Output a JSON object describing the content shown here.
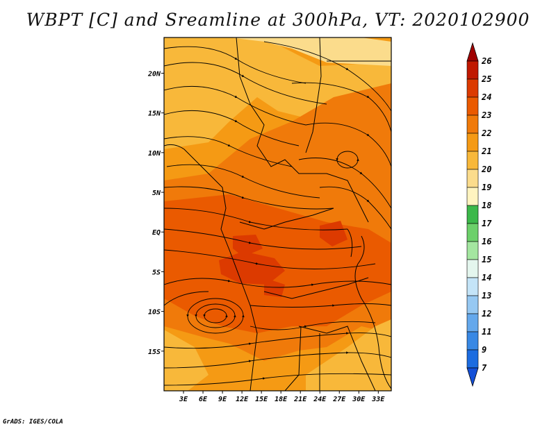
{
  "title": "WBPT [C] and Sreamline at 300hPa, VT: 2020102900",
  "credit": "GrADS: IGES/COLA",
  "chart_data": {
    "type": "heatmap",
    "variable": "WBPT",
    "units": "C",
    "overlay": "streamlines",
    "level": "300hPa",
    "valid_time": "2020102900",
    "x_axis": {
      "range": [
        0,
        35
      ],
      "ticks": [
        3,
        6,
        9,
        12,
        15,
        18,
        21,
        24,
        27,
        30,
        33
      ],
      "tick_labels": [
        "3E",
        "6E",
        "9E",
        "12E",
        "15E",
        "18E",
        "21E",
        "24E",
        "27E",
        "30E",
        "33E"
      ]
    },
    "y_axis": {
      "range": [
        -20,
        24.5
      ],
      "ticks": [
        20,
        15,
        10,
        5,
        0,
        -5,
        -10,
        -15
      ],
      "tick_labels": [
        "20N",
        "15N",
        "10N",
        "5N",
        "EQ",
        "5S",
        "10S",
        "15S"
      ]
    },
    "colorbar": {
      "labels": [
        "26",
        "25",
        "24",
        "23",
        "22",
        "21",
        "20",
        "19",
        "18",
        "17",
        "16",
        "15",
        "14",
        "13",
        "12",
        "11",
        "9",
        "7"
      ],
      "colors": [
        "#a00000",
        "#c01800",
        "#dc3a00",
        "#ea5a00",
        "#f07a0a",
        "#f59a14",
        "#f8b83a",
        "#fbdc8c",
        "#fff4c0",
        "#3cb84a",
        "#6cd06a",
        "#a4e6a0",
        "#e4f6ee",
        "#c4e4f8",
        "#96c8f2",
        "#64a8ec",
        "#3888e4",
        "#1c6ce0",
        "#1450d8"
      ]
    },
    "field_regions": [
      {
        "level": 21,
        "note": "north-west and northern band"
      },
      {
        "level": 20,
        "note": "far north and north-west"
      },
      {
        "level": 22,
        "note": "central and eastern belt"
      },
      {
        "level": 23,
        "note": "central Congo basin cores"
      },
      {
        "level": 21,
        "note": "south and south-east"
      },
      {
        "level": 20,
        "note": "far south-east"
      }
    ]
  }
}
